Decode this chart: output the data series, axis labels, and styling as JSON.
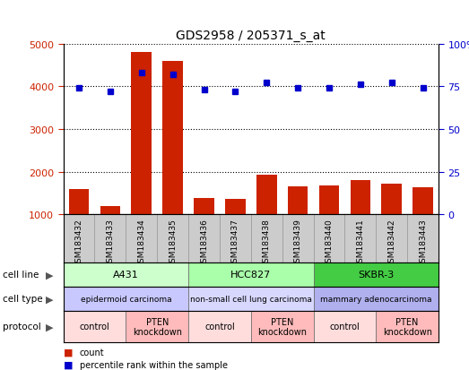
{
  "title": "GDS2958 / 205371_s_at",
  "samples": [
    "GSM183432",
    "GSM183433",
    "GSM183434",
    "GSM183435",
    "GSM183436",
    "GSM183437",
    "GSM183438",
    "GSM183439",
    "GSM183440",
    "GSM183441",
    "GSM183442",
    "GSM183443"
  ],
  "counts": [
    1600,
    1200,
    4800,
    4600,
    1380,
    1360,
    1920,
    1660,
    1680,
    1800,
    1720,
    1640
  ],
  "percentiles": [
    74,
    72,
    83,
    82,
    73,
    72,
    77,
    74,
    74,
    76,
    77,
    74
  ],
  "bar_color": "#cc2200",
  "dot_color": "#0000cc",
  "ylim_left": [
    1000,
    5000
  ],
  "ylim_right": [
    0,
    100
  ],
  "yticks_left": [
    1000,
    2000,
    3000,
    4000,
    5000
  ],
  "yticks_right": [
    0,
    25,
    50,
    75,
    100
  ],
  "ytick_labels_right": [
    "0",
    "25",
    "50",
    "75",
    "100%"
  ],
  "cell_line_groups": [
    {
      "label": "A431",
      "start": 0,
      "end": 3,
      "color": "#ccffcc"
    },
    {
      "label": "HCC827",
      "start": 4,
      "end": 7,
      "color": "#aaffaa"
    },
    {
      "label": "SKBR-3",
      "start": 8,
      "end": 11,
      "color": "#44cc44"
    }
  ],
  "cell_type_groups": [
    {
      "label": "epidermoid carcinoma",
      "start": 0,
      "end": 3,
      "color": "#c8c8ff"
    },
    {
      "label": "non-small cell lung carcinoma",
      "start": 4,
      "end": 7,
      "color": "#d8d8ff"
    },
    {
      "label": "mammary adenocarcinoma",
      "start": 8,
      "end": 11,
      "color": "#b0b0ee"
    }
  ],
  "protocol_groups": [
    {
      "label": "control",
      "start": 0,
      "end": 1,
      "color": "#ffdddd"
    },
    {
      "label": "PTEN\nknockdown",
      "start": 2,
      "end": 3,
      "color": "#ffbbbb"
    },
    {
      "label": "control",
      "start": 4,
      "end": 5,
      "color": "#ffdddd"
    },
    {
      "label": "PTEN\nknockdown",
      "start": 6,
      "end": 7,
      "color": "#ffbbbb"
    },
    {
      "label": "control",
      "start": 8,
      "end": 9,
      "color": "#ffdddd"
    },
    {
      "label": "PTEN\nknockdown",
      "start": 10,
      "end": 11,
      "color": "#ffbbbb"
    }
  ],
  "row_labels": [
    "cell line",
    "cell type",
    "protocol"
  ],
  "xtick_bg_color": "#cccccc",
  "bg_color": "#ffffff",
  "grid_color": "#000000",
  "tick_label_color_left": "#cc2200",
  "tick_label_color_right": "#0000cc"
}
